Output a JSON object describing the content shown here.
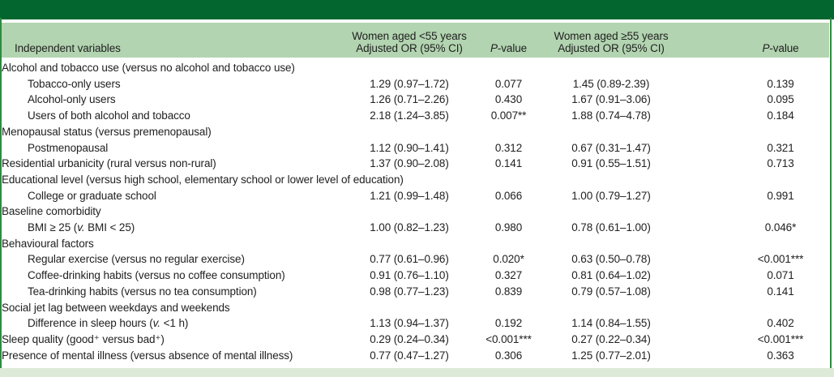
{
  "colors": {
    "top_bar": "#04662f",
    "header_band": "#b2d4b0",
    "bottom_strip": "#dcead7",
    "side_border": "#2e8b42",
    "text": "#212121",
    "body_bg": "#ffffff"
  },
  "table": {
    "columns": {
      "col1": "Independent variables",
      "group1_line1": "Women aged <55 years",
      "group1_line2": "Adjusted OR (95% CI)",
      "group2_line1": "Women aged ≥55 years",
      "group2_line2": "Adjusted OR (95% CI)",
      "p_label": "P-value"
    },
    "rows": [
      {
        "label": "Alcohol and tobacco use (versus no alcohol and tobacco use)",
        "indent": false,
        "or1": "",
        "p1": "",
        "or2": "",
        "p2": ""
      },
      {
        "label": "Tobacco-only users",
        "indent": true,
        "or1": "1.29 (0.97–1.72)",
        "p1": "0.077",
        "or2": "1.45 (0.89-2.39)",
        "p2": "0.139"
      },
      {
        "label": "Alcohol-only users",
        "indent": true,
        "or1": "1.26 (0.71–2.26)",
        "p1": "0.430",
        "or2": "1.67 (0.91–3.06)",
        "p2": "0.095"
      },
      {
        "label": "Users of both alcohol and tobacco",
        "indent": true,
        "or1": "2.18 (1.24–3.85)",
        "p1": "0.007**",
        "or2": "1.88 (0.74–4.78)",
        "p2": "0.184"
      },
      {
        "label": "Menopausal status (versus premenopausal)",
        "indent": false,
        "or1": "",
        "p1": "",
        "or2": "",
        "p2": ""
      },
      {
        "label": "Postmenopausal",
        "indent": true,
        "or1": "1.12 (0.90–1.41)",
        "p1": "0.312",
        "or2": "0.67 (0.31–1.47)",
        "p2": "0.321"
      },
      {
        "label": "Residential urbanicity (rural versus non-rural)",
        "indent": false,
        "or1": "1.37 (0.90–2.08)",
        "p1": "0.141",
        "or2": "0.91 (0.55–1.51)",
        "p2": "0.713"
      },
      {
        "label": "Educational level (versus high school, elementary school or lower level of education)",
        "indent": false,
        "or1": "",
        "p1": "",
        "or2": "",
        "p2": ""
      },
      {
        "label": "College or graduate school",
        "indent": true,
        "or1": "1.21 (0.99–1.48)",
        "p1": "0.066",
        "or2": "1.00 (0.79–1.27)",
        "p2": "0.991"
      },
      {
        "label": "Baseline comorbidity",
        "indent": false,
        "or1": "",
        "p1": "",
        "or2": "",
        "p2": ""
      },
      {
        "label": "BMI ≥ 25 (v. BMI < 25)",
        "indent": true,
        "or1": "1.00 (0.82–1.23)",
        "p1": "0.980",
        "or2": "0.78 (0.61–1.00)",
        "p2": "0.046*"
      },
      {
        "label": "Behavioural factors",
        "indent": false,
        "or1": "",
        "p1": "",
        "or2": "",
        "p2": ""
      },
      {
        "label": "Regular exercise (versus no regular exercise)",
        "indent": true,
        "or1": "0.77 (0.61–0.96)",
        "p1": "0.020*",
        "or2": "0.63 (0.50–0.78)",
        "p2": "<0.001***"
      },
      {
        "label": "Coffee-drinking habits (versus no coffee consumption)",
        "indent": true,
        "or1": "0.91 (0.76–1.10)",
        "p1": "0.327",
        "or2": "0.81 (0.64–1.02)",
        "p2": "0.071"
      },
      {
        "label": "Tea-drinking habits (versus no tea consumption)",
        "indent": true,
        "or1": "0.98 (0.77–1.23)",
        "p1": "0.839",
        "or2": "0.79 (0.57–1.08)",
        "p2": "0.141"
      },
      {
        "label": "Social jet lag between weekdays and weekends",
        "indent": false,
        "or1": "",
        "p1": "",
        "or2": "",
        "p2": ""
      },
      {
        "label": "Difference in sleep hours (v. <1 h)",
        "indent": true,
        "or1": "1.13 (0.94–1.37)",
        "p1": "0.192",
        "or2": "1.14 (0.84–1.55)",
        "p2": "0.402"
      },
      {
        "label": "Sleep quality (good⁺ versus bad⁺)",
        "indent": false,
        "or1": "0.29 (0.24–0.34)",
        "p1": "<0.001***",
        "or2": "0.27 (0.22–0.34)",
        "p2": "<0.001***"
      },
      {
        "label": "Presence of mental illness (versus absence of mental illness)",
        "indent": false,
        "or1": "0.77 (0.47–1.27)",
        "p1": "0.306",
        "or2": "1.25 (0.77–2.01)",
        "p2": "0.363"
      }
    ]
  }
}
